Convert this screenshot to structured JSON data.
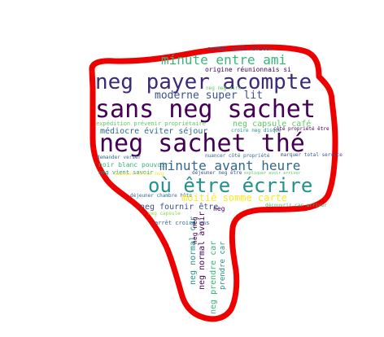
{
  "cloud": {
    "shape": "thumbs-down",
    "outline_color": "#ee0000",
    "palette": [
      "#440154",
      "#31688e",
      "#35b779",
      "#90d743",
      "#fde725",
      "#21918c",
      "#3b528b"
    ],
    "words": {
      "w01": {
        "text": "sans neg sachet",
        "color": "#440154"
      },
      "w02": {
        "text": "neg sachet thé",
        "color": "#440154"
      },
      "w03": {
        "text": "neg payer acompte",
        "color": "#3b2a78"
      },
      "w04": {
        "text": "où être écrire",
        "color": "#21918c"
      },
      "w05": {
        "text": "minute avant heure",
        "color": "#31688e"
      },
      "w06": {
        "text": "minute entre ami",
        "color": "#35b779"
      },
      "w07": {
        "text": "moderne super lit",
        "color": "#3b528b"
      },
      "w08": {
        "text": "moitié somme carte",
        "color": "#fde725"
      },
      "w09": {
        "text": "médiocre éviter séjour",
        "color": "#31688e"
      },
      "w10": {
        "text": "neg capsule café",
        "color": "#5ec962"
      },
      "w11": {
        "text": "neg fournir être",
        "color": "#3b528b"
      },
      "w12": {
        "text": "neg normal car",
        "color": "#21918c"
      },
      "w13": {
        "text": "neg normal avoir",
        "color": "#440154"
      },
      "w14": {
        "text": "neg prendre car",
        "color": "#35b779"
      },
      "w15": {
        "text": "noir blanc pouvoir",
        "color": "#35b779"
      },
      "w16": {
        "text": "neg vient savoir",
        "color": "#21918c"
      },
      "w17": {
        "text": "origine réunionnais si",
        "color": "#440154"
      },
      "w18": {
        "text": "normal avoir éviter",
        "color": "#3b528b"
      },
      "w19": {
        "text": "déjeuner chambre hôte",
        "color": "#31688e"
      },
      "w20": {
        "text": "neg capsule",
        "color": "#90d743"
      },
      "w21": {
        "text": "arrêt croire uns",
        "color": "#31688e"
      },
      "w22": {
        "text": "déjeuner neg être",
        "color": "#3b528b"
      },
      "w23": {
        "text": "nuancer côté propriété",
        "color": "#31688e"
      },
      "w24": {
        "text": "croire neg disque",
        "color": "#21918c"
      },
      "w25": {
        "text": "côté propriété être",
        "color": "#440154"
      },
      "w26": {
        "text": "expédition prévenir propriétaire",
        "color": "#5ec962"
      },
      "w27": {
        "text": "demander verser",
        "color": "#31688e"
      },
      "w28": {
        "text": "douceur envie neg",
        "color": "#fde725"
      },
      "w29": {
        "text": "neg neg aire",
        "color": "#5ec962"
      },
      "w30": {
        "text": "marquer total service",
        "color": "#3b528b"
      },
      "w31": {
        "text": "découvrir car arriver",
        "color": "#35b779"
      },
      "w32": {
        "text": "expliquer avoir arriver",
        "color": "#5ec962"
      },
      "w33": {
        "text": "neg neg",
        "color": "#440154"
      },
      "w34": {
        "text": "prendre car",
        "color": "#21918c"
      },
      "w35": {
        "text": "neg",
        "color": "#440154"
      }
    }
  }
}
